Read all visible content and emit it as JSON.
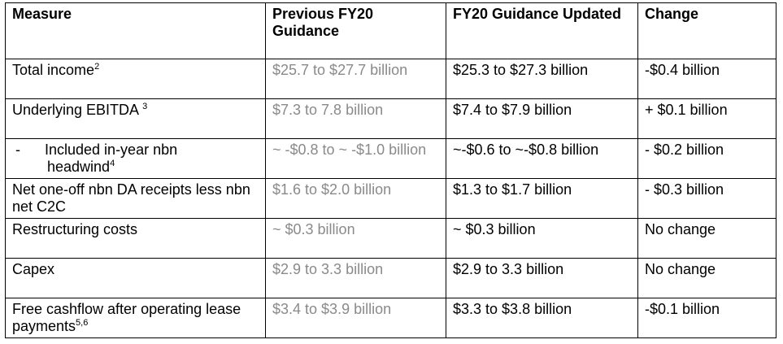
{
  "headers": {
    "measure": "Measure",
    "previous": "Previous FY20 Guidance",
    "updated": "FY20 Guidance Updated",
    "change": "Change"
  },
  "rows": [
    {
      "measure": "Total income",
      "sup": "2",
      "previous": "$25.7 to $27.7 billion",
      "updated": "$25.3 to $27.3 billion",
      "change": "-$0.4 billion"
    },
    {
      "measure": "Underlying EBITDA ",
      "sup": "3",
      "previous": "$7.3 to 7.8 billion",
      "updated": "$7.4 to $7.9 billion",
      "change": "+ $0.1 billion"
    },
    {
      "dash": "-",
      "measure_line1": "Included in-year nbn",
      "measure_line2": "headwind",
      "sup": "4",
      "previous": "~ -$0.8 to ~ -$1.0 billion",
      "updated": "~-$0.6 to ~-$0.8 billion",
      "change": "- $0.2 billion"
    },
    {
      "measure": "Net one-off nbn DA receipts less nbn net C2C",
      "previous": "$1.6 to $2.0 billion",
      "updated": "$1.3 to $1.7 billion",
      "change": "- $0.3 billion"
    },
    {
      "measure": "Restructuring costs",
      "previous": "~ $0.3 billion",
      "updated": "~ $0.3 billion",
      "change": "No change"
    },
    {
      "measure": "Capex",
      "previous": "$2.9 to 3.3 billion",
      "updated": "$2.9 to 3.3 billion",
      "change": "No change"
    },
    {
      "measure": "Free cashflow after operating lease payments",
      "sup": "5,6",
      "previous": "$3.4 to $3.9 billion",
      "updated": "$3.3 to $3.8 billion",
      "change": "-$0.1 billion"
    }
  ]
}
